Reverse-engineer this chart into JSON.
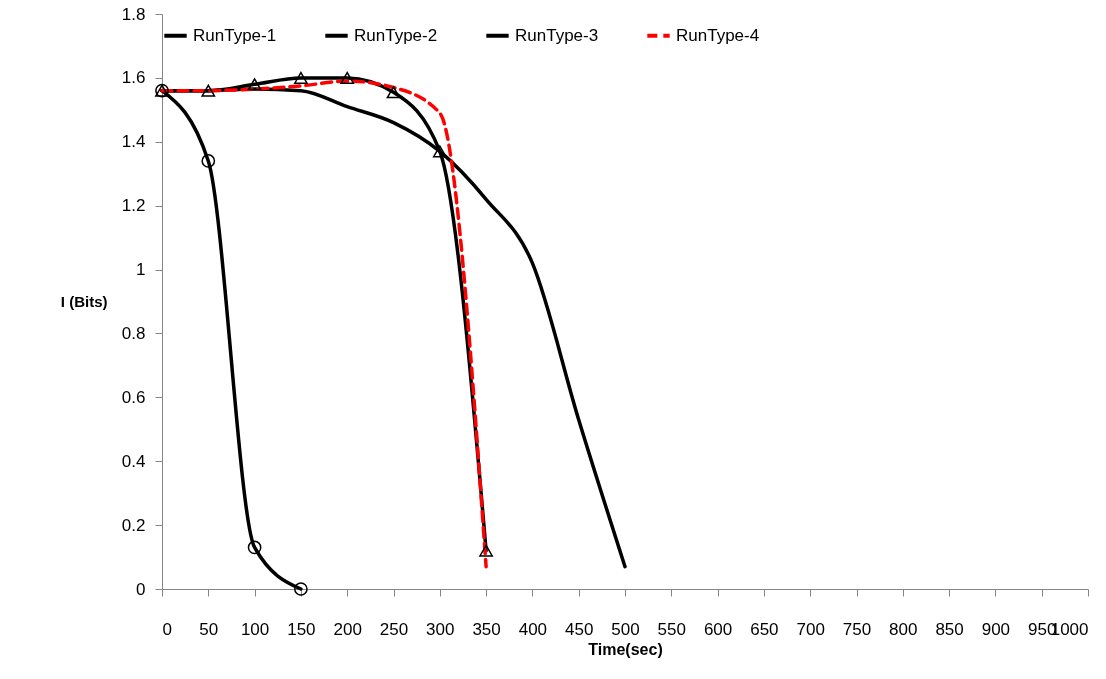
{
  "chart_data": {
    "type": "line",
    "xlabel": "Time(sec)",
    "ylabel": "I (Bits)",
    "xlim": [
      0,
      1000
    ],
    "xticks": [
      0,
      50,
      100,
      150,
      200,
      250,
      300,
      350,
      400,
      450,
      500,
      550,
      600,
      650,
      700,
      750,
      800,
      850,
      900,
      950,
      1000
    ],
    "ylim": [
      0,
      1.8
    ],
    "yticks": [
      0,
      0.2,
      0.4,
      0.6,
      0.8,
      1,
      1.2,
      1.4,
      1.6,
      1.8
    ],
    "grid": false,
    "legend": "top",
    "series": [
      {
        "name": "RunType-1",
        "color": "#000000",
        "marker": "circle",
        "line_style": "solid",
        "x": [
          0,
          50,
          100,
          150
        ],
        "values": [
          1.56,
          1.34,
          0.13,
          0
        ]
      },
      {
        "name": "RunType-2",
        "color": "#000000",
        "marker": "triangle",
        "line_style": "solid",
        "x": [
          0,
          50,
          100,
          150,
          200,
          250,
          300,
          350
        ],
        "values": [
          1.56,
          1.56,
          1.58,
          1.6,
          1.6,
          1.555,
          1.37,
          0.12
        ]
      },
      {
        "name": "RunType-3",
        "color": "#000000",
        "marker": "none",
        "line_style": "solid",
        "x": [
          0,
          50,
          100,
          150,
          200,
          250,
          300,
          350,
          400,
          450,
          500
        ],
        "values": [
          1.56,
          1.56,
          1.565,
          1.56,
          1.51,
          1.46,
          1.37,
          1.22,
          1.02,
          0.53,
          0.07
        ]
      },
      {
        "name": "RunType-4",
        "color": "#ff0000",
        "marker": "none",
        "line_style": "dashed",
        "x": [
          0,
          50,
          100,
          150,
          200,
          250,
          300,
          350
        ],
        "values": [
          1.56,
          1.56,
          1.565,
          1.575,
          1.59,
          1.57,
          1.49,
          0.07
        ]
      }
    ]
  }
}
